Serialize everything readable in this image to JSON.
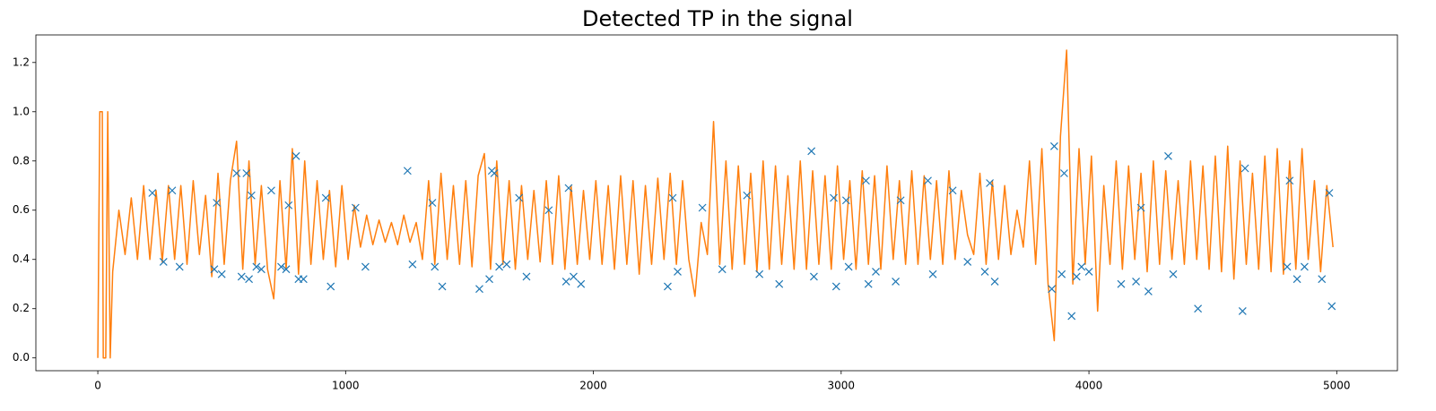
{
  "chart_data": {
    "type": "line",
    "title": "Detected TP in the signal",
    "xlim": [
      -250,
      5245
    ],
    "ylim": [
      -0.052,
      1.312
    ],
    "xticks": [
      0,
      1000,
      2000,
      3000,
      4000,
      5000
    ],
    "yticks": [
      {
        "value": 0,
        "label": "0.0"
      },
      0.2,
      0.4,
      0.6,
      0.8,
      {
        "value": 1,
        "label": "1.0"
      },
      1.2
    ],
    "grid": false,
    "series": [
      {
        "mode": "line",
        "color": "#ff7f0e",
        "x": [
          0,
          8,
          18,
          22,
          32,
          40,
          50,
          60,
          85,
          110,
          135,
          160,
          185,
          210,
          235,
          260,
          285,
          310,
          335,
          360,
          385,
          410,
          435,
          460,
          485,
          510,
          535,
          560,
          585,
          610,
          635,
          660,
          685,
          710,
          735,
          760,
          785,
          810,
          835,
          860,
          885,
          910,
          935,
          960,
          985,
          1010,
          1035,
          1060,
          1085,
          1110,
          1135,
          1160,
          1185,
          1210,
          1235,
          1260,
          1285,
          1310,
          1335,
          1360,
          1385,
          1410,
          1435,
          1460,
          1485,
          1510,
          1535,
          1560,
          1585,
          1610,
          1635,
          1660,
          1685,
          1710,
          1735,
          1760,
          1785,
          1810,
          1835,
          1860,
          1885,
          1910,
          1935,
          1960,
          1985,
          2010,
          2035,
          2060,
          2085,
          2110,
          2135,
          2160,
          2185,
          2210,
          2235,
          2260,
          2285,
          2310,
          2335,
          2360,
          2385,
          2410,
          2435,
          2460,
          2485,
          2510,
          2535,
          2560,
          2585,
          2610,
          2635,
          2660,
          2685,
          2710,
          2735,
          2760,
          2785,
          2810,
          2835,
          2860,
          2885,
          2910,
          2935,
          2960,
          2985,
          3010,
          3035,
          3060,
          3085,
          3110,
          3135,
          3160,
          3185,
          3210,
          3235,
          3260,
          3285,
          3310,
          3335,
          3360,
          3385,
          3410,
          3435,
          3460,
          3485,
          3510,
          3535,
          3560,
          3585,
          3610,
          3635,
          3660,
          3685,
          3710,
          3735,
          3760,
          3785,
          3810,
          3835,
          3860,
          3885,
          3910,
          3935,
          3960,
          3985,
          4010,
          4035,
          4060,
          4085,
          4110,
          4135,
          4160,
          4185,
          4210,
          4235,
          4260,
          4285,
          4310,
          4335,
          4360,
          4385,
          4410,
          4435,
          4460,
          4485,
          4510,
          4535,
          4560,
          4585,
          4610,
          4635,
          4660,
          4685,
          4710,
          4735,
          4760,
          4785,
          4810,
          4835,
          4860,
          4885,
          4910,
          4935,
          4960,
          4985
        ],
        "values": [
          0,
          1.0,
          1.0,
          0,
          0,
          1.0,
          0,
          0.35,
          0.6,
          0.42,
          0.65,
          0.4,
          0.7,
          0.4,
          0.68,
          0.39,
          0.7,
          0.4,
          0.7,
          0.38,
          0.72,
          0.42,
          0.66,
          0.33,
          0.75,
          0.38,
          0.72,
          0.88,
          0.36,
          0.8,
          0.38,
          0.7,
          0.36,
          0.24,
          0.72,
          0.36,
          0.85,
          0.34,
          0.8,
          0.38,
          0.72,
          0.4,
          0.68,
          0.37,
          0.7,
          0.4,
          0.62,
          0.45,
          0.58,
          0.46,
          0.56,
          0.47,
          0.55,
          0.46,
          0.58,
          0.47,
          0.55,
          0.4,
          0.72,
          0.38,
          0.75,
          0.4,
          0.7,
          0.38,
          0.72,
          0.37,
          0.74,
          0.83,
          0.36,
          0.8,
          0.38,
          0.72,
          0.36,
          0.7,
          0.4,
          0.68,
          0.39,
          0.72,
          0.38,
          0.74,
          0.36,
          0.7,
          0.38,
          0.68,
          0.4,
          0.72,
          0.38,
          0.7,
          0.36,
          0.74,
          0.38,
          0.72,
          0.34,
          0.7,
          0.38,
          0.73,
          0.4,
          0.75,
          0.38,
          0.72,
          0.4,
          0.25,
          0.55,
          0.42,
          0.96,
          0.38,
          0.8,
          0.36,
          0.78,
          0.38,
          0.75,
          0.35,
          0.8,
          0.36,
          0.78,
          0.38,
          0.74,
          0.36,
          0.8,
          0.36,
          0.76,
          0.38,
          0.74,
          0.36,
          0.78,
          0.4,
          0.72,
          0.36,
          0.76,
          0.38,
          0.74,
          0.36,
          0.78,
          0.4,
          0.72,
          0.38,
          0.76,
          0.38,
          0.74,
          0.4,
          0.72,
          0.38,
          0.76,
          0.4,
          0.68,
          0.5,
          0.42,
          0.75,
          0.38,
          0.72,
          0.4,
          0.7,
          0.42,
          0.6,
          0.45,
          0.8,
          0.38,
          0.85,
          0.3,
          0.07,
          0.9,
          1.25,
          0.3,
          0.85,
          0.38,
          0.82,
          0.19,
          0.7,
          0.38,
          0.8,
          0.36,
          0.78,
          0.4,
          0.75,
          0.35,
          0.8,
          0.38,
          0.76,
          0.4,
          0.72,
          0.38,
          0.8,
          0.4,
          0.78,
          0.36,
          0.82,
          0.35,
          0.86,
          0.32,
          0.8,
          0.38,
          0.75,
          0.36,
          0.82,
          0.35,
          0.85,
          0.34,
          0.8,
          0.36,
          0.85,
          0.4,
          0.72,
          0.35,
          0.7,
          0.45
        ]
      },
      {
        "mode": "markers",
        "marker": "x",
        "color": "#1f77b4",
        "x": [
          220,
          265,
          300,
          330,
          470,
          480,
          500,
          560,
          580,
          600,
          610,
          620,
          640,
          660,
          700,
          740,
          760,
          770,
          800,
          810,
          830,
          940,
          920,
          1040,
          1080,
          1250,
          1270,
          1350,
          1360,
          1390,
          1540,
          1580,
          1590,
          1600,
          1620,
          1650,
          1700,
          1730,
          1820,
          1890,
          1900,
          1920,
          1950,
          2300,
          2320,
          2340,
          2440,
          2520,
          2620,
          2670,
          2750,
          2880,
          2890,
          2970,
          2980,
          3020,
          3030,
          3100,
          3110,
          3140,
          3220,
          3240,
          3350,
          3370,
          3450,
          3510,
          3580,
          3600,
          3620,
          3850,
          3860,
          3890,
          3900,
          3930,
          3950,
          3970,
          4000,
          4130,
          4190,
          4210,
          4240,
          4320,
          4340,
          4440,
          4620,
          4630,
          4800,
          4810,
          4840,
          4870,
          4940,
          4970,
          4980
        ],
        "values": [
          0.67,
          0.39,
          0.68,
          0.37,
          0.36,
          0.63,
          0.34,
          0.75,
          0.33,
          0.75,
          0.32,
          0.66,
          0.37,
          0.36,
          0.68,
          0.37,
          0.36,
          0.62,
          0.82,
          0.32,
          0.32,
          0.29,
          0.65,
          0.61,
          0.37,
          0.76,
          0.38,
          0.63,
          0.37,
          0.29,
          0.28,
          0.32,
          0.76,
          0.75,
          0.37,
          0.38,
          0.65,
          0.33,
          0.6,
          0.31,
          0.69,
          0.33,
          0.3,
          0.29,
          0.65,
          0.35,
          0.61,
          0.36,
          0.66,
          0.34,
          0.3,
          0.84,
          0.33,
          0.65,
          0.29,
          0.64,
          0.37,
          0.72,
          0.3,
          0.35,
          0.31,
          0.64,
          0.72,
          0.34,
          0.68,
          0.39,
          0.35,
          0.71,
          0.31,
          0.28,
          0.86,
          0.34,
          0.75,
          0.17,
          0.33,
          0.37,
          0.35,
          0.3,
          0.31,
          0.61,
          0.27,
          0.82,
          0.34,
          0.2,
          0.19,
          0.77,
          0.37,
          0.72,
          0.32,
          0.37,
          0.32,
          0.67,
          0.21
        ]
      }
    ]
  }
}
